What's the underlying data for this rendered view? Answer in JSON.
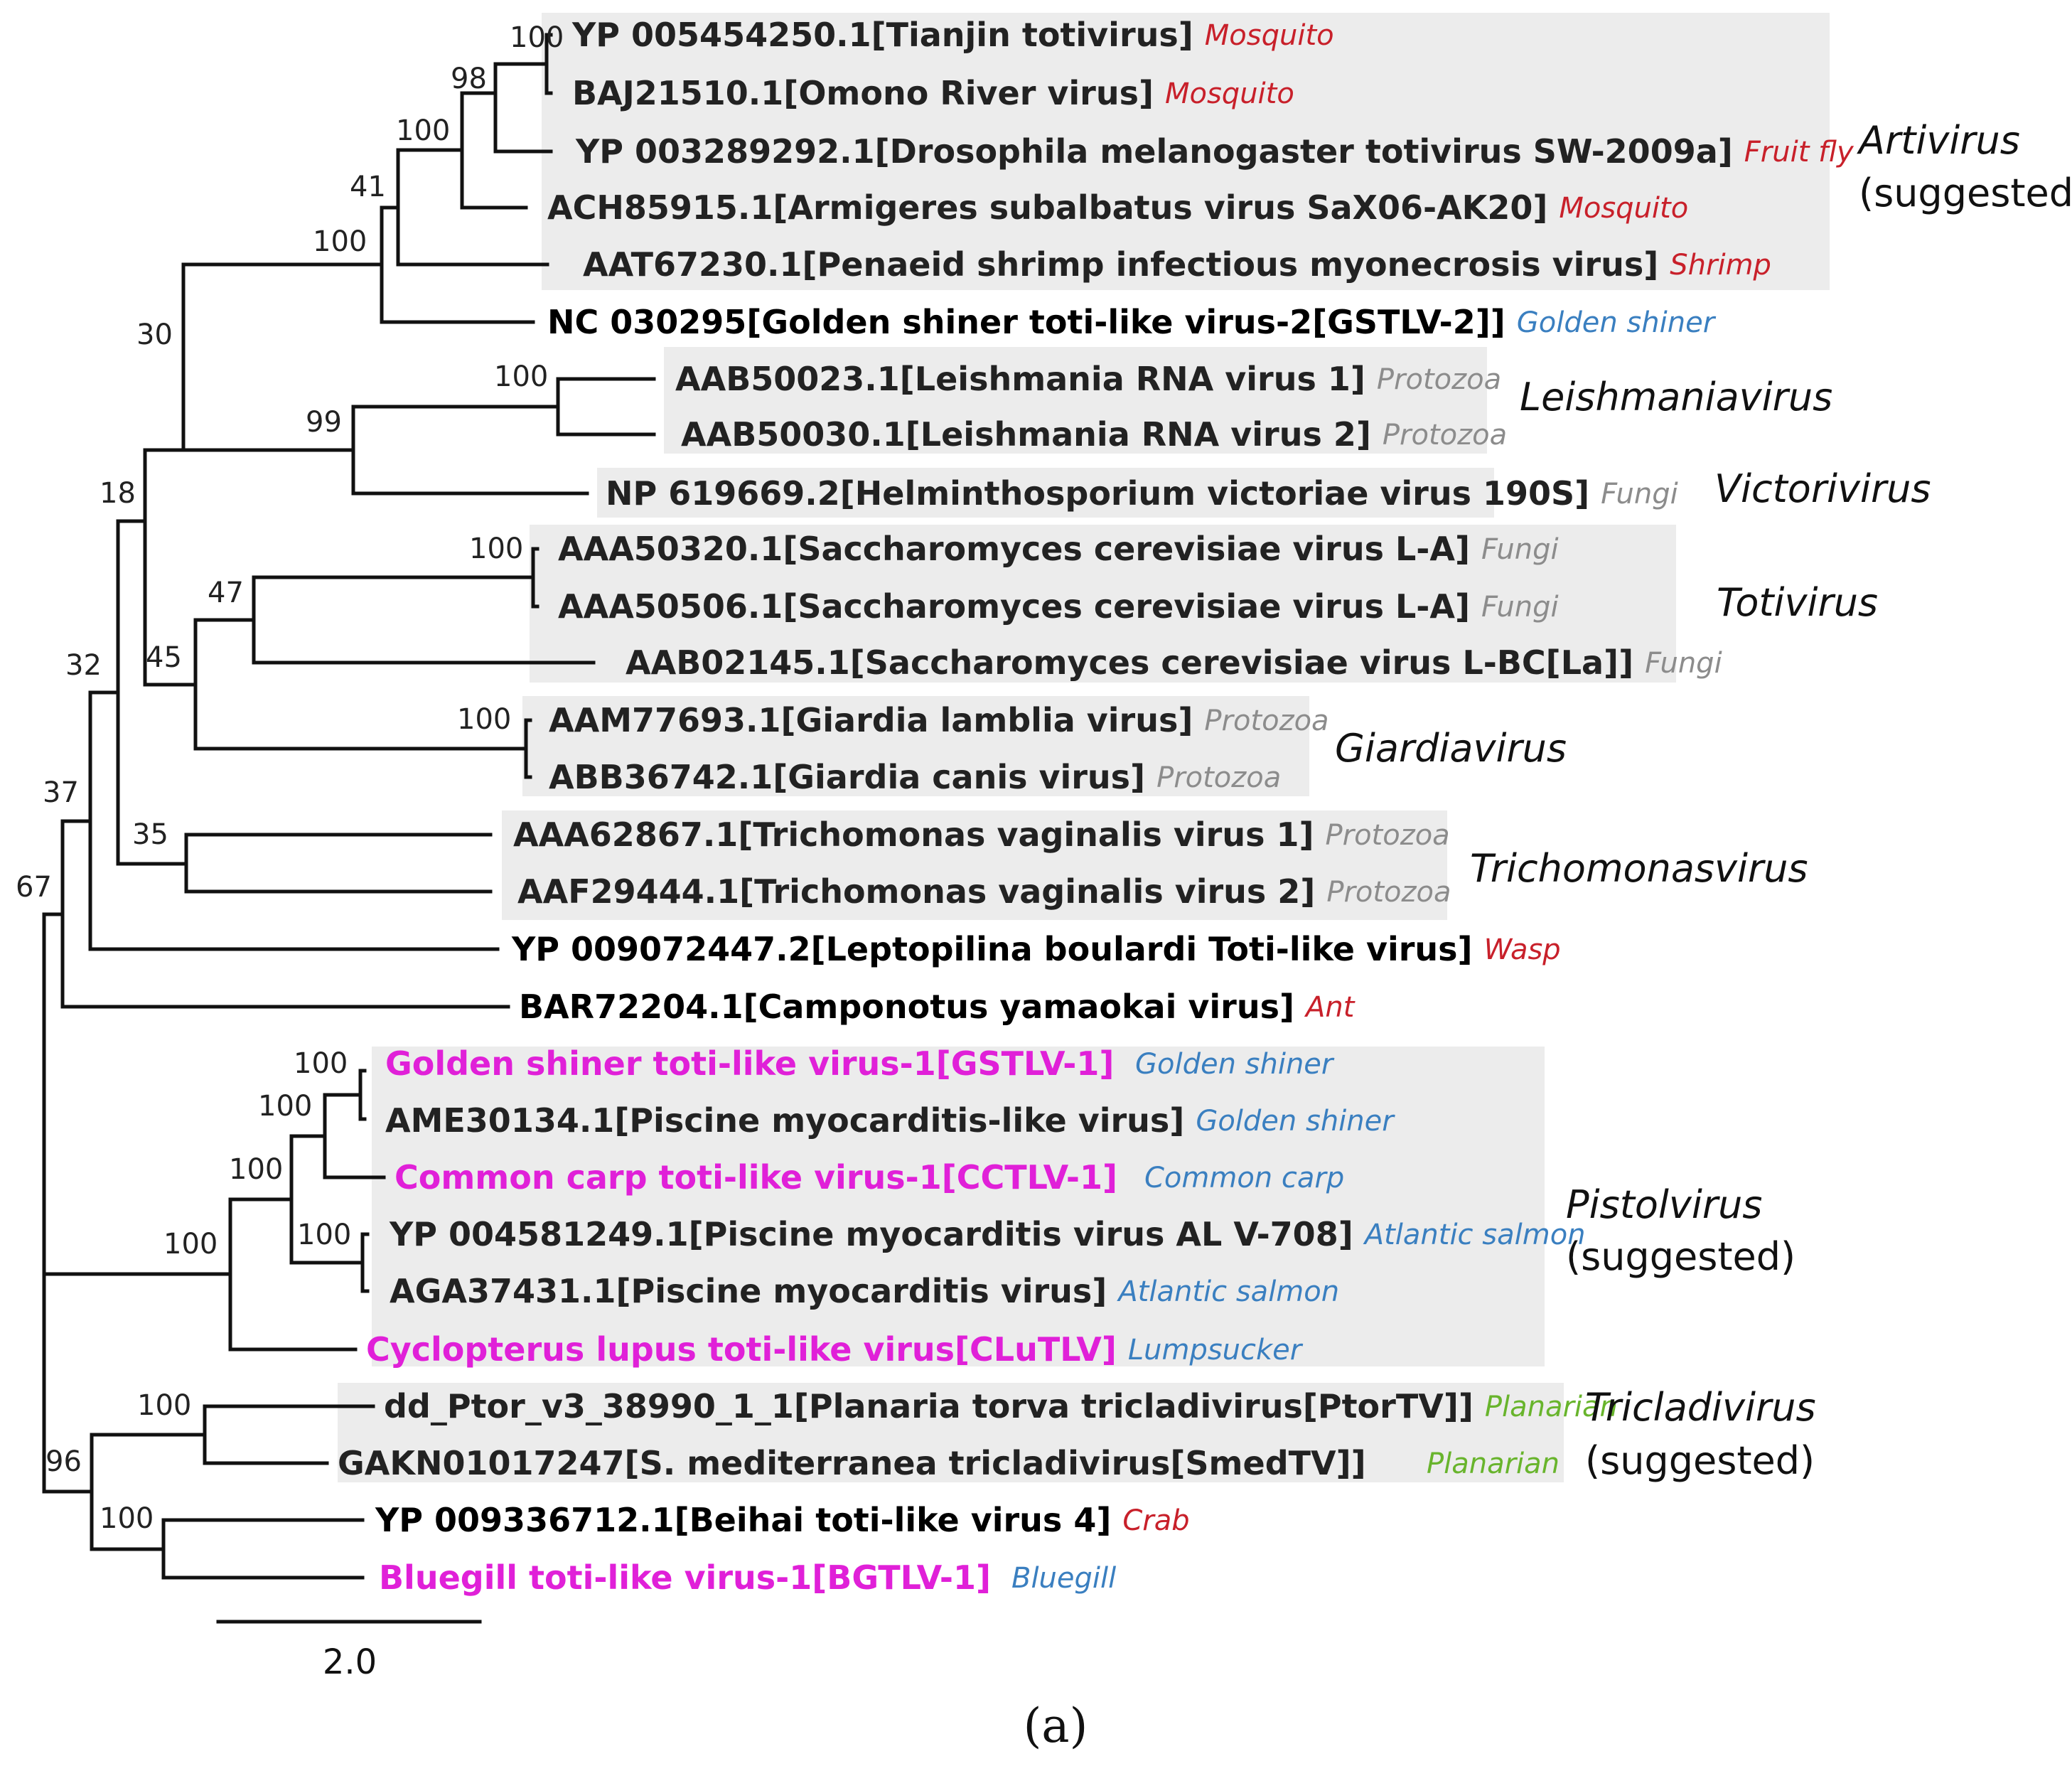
{
  "figure": {
    "panel_label": "(a)",
    "scale_bar": "2.0"
  },
  "colors": {
    "ingroup_text": "#222222",
    "new_virus": "#e020d8",
    "host_insect": "#c8202a",
    "host_fish": "#3a7fc0",
    "host_gray": "#8c8c8c",
    "host_planarian": "#68b42c",
    "box_fill": "#ececec"
  },
  "taxa": [
    {
      "label": "YP 005454250.1[Tianjin totivirus]",
      "host": "Mosquito",
      "kind": "boxed",
      "host_kind": "insect"
    },
    {
      "label": "BAJ21510.1[Omono River virus]",
      "host": "Mosquito",
      "kind": "boxed",
      "host_kind": "insect"
    },
    {
      "label": "YP 003289292.1[Drosophila melanogaster totivirus SW-2009a]",
      "host": "Fruit fly",
      "kind": "boxed",
      "host_kind": "insect"
    },
    {
      "label": "ACH85915.1[Armigeres subalbatus virus SaX06-AK20]",
      "host": "Mosquito",
      "kind": "boxed",
      "host_kind": "insect"
    },
    {
      "label": "AAT67230.1[Penaeid shrimp infectious myonecrosis virus]",
      "host": "Shrimp",
      "kind": "boxed",
      "host_kind": "insect"
    },
    {
      "label": "NC 030295[Golden shiner toti-like virus-2[GSTLV-2]]",
      "host": "Golden shiner",
      "kind": "outside",
      "host_kind": "fish"
    },
    {
      "label": "AAB50023.1[Leishmania RNA virus 1]",
      "host": "Protozoa",
      "kind": "boxed",
      "host_kind": "gray"
    },
    {
      "label": "AAB50030.1[Leishmania RNA virus 2]",
      "host": "Protozoa",
      "kind": "boxed",
      "host_kind": "gray"
    },
    {
      "label": "NP 619669.2[Helminthosporium victoriae virus 190S]",
      "host": "Fungi",
      "kind": "boxed",
      "host_kind": "gray"
    },
    {
      "label": "AAA50320.1[Saccharomyces cerevisiae virus L-A]",
      "host": "Fungi",
      "kind": "boxed",
      "host_kind": "gray"
    },
    {
      "label": "AAA50506.1[Saccharomyces cerevisiae virus L-A]",
      "host": "Fungi",
      "kind": "boxed",
      "host_kind": "gray"
    },
    {
      "label": "AAB02145.1[Saccharomyces cerevisiae virus L-BC[La]]",
      "host": "Fungi",
      "kind": "boxed",
      "host_kind": "gray"
    },
    {
      "label": "AAM77693.1[Giardia lamblia virus]",
      "host": "Protozoa",
      "kind": "boxed",
      "host_kind": "gray"
    },
    {
      "label": "ABB36742.1[Giardia canis virus]",
      "host": "Protozoa",
      "kind": "boxed",
      "host_kind": "gray"
    },
    {
      "label": "AAA62867.1[Trichomonas vaginalis virus 1]",
      "host": "Protozoa",
      "kind": "boxed",
      "host_kind": "gray"
    },
    {
      "label": "AAF29444.1[Trichomonas vaginalis virus 2]",
      "host": "Protozoa",
      "kind": "boxed",
      "host_kind": "gray"
    },
    {
      "label": "YP 009072447.2[Leptopilina boulardi Toti-like virus]",
      "host": "Wasp",
      "kind": "outside",
      "host_kind": "insect"
    },
    {
      "label": "BAR72204.1[Camponotus yamaokai virus]",
      "host": "Ant",
      "kind": "outside",
      "host_kind": "insect"
    },
    {
      "label": "Golden shiner toti-like virus-1[GSTLV-1]",
      "host": "Golden shiner",
      "kind": "new",
      "host_kind": "fish"
    },
    {
      "label": "AME30134.1[Piscine myocarditis-like virus]",
      "host": "Golden shiner",
      "kind": "boxed",
      "host_kind": "fish"
    },
    {
      "label": "Common carp toti-like virus-1[CCTLV-1]",
      "host": "Common carp",
      "kind": "new",
      "host_kind": "fish"
    },
    {
      "label": "YP 004581249.1[Piscine myocarditis virus AL V-708]",
      "host": "Atlantic salmon",
      "kind": "boxed",
      "host_kind": "fish"
    },
    {
      "label": "AGA37431.1[Piscine myocarditis virus]",
      "host": "Atlantic salmon",
      "kind": "boxed",
      "host_kind": "fish"
    },
    {
      "label": "Cyclopterus lupus toti-like virus[CLuTLV]",
      "host": "Lumpsucker",
      "kind": "new",
      "host_kind": "fish"
    },
    {
      "label": "dd_Ptor_v3_38990_1_1[Planaria torva tricladivirus[PtorTV]]",
      "host": "Planarian",
      "kind": "boxed",
      "host_kind": "planarian"
    },
    {
      "label": "GAKN01017247[S. mediterranea tricladivirus[SmedTV]]",
      "host": "Planarian",
      "kind": "boxed",
      "host_kind": "planarian"
    },
    {
      "label": "YP 009336712.1[Beihai toti-like virus 4]",
      "host": "Crab",
      "kind": "outside",
      "host_kind": "insect"
    },
    {
      "label": "Bluegill toti-like virus-1[BGTLV-1]",
      "host": "Bluegill",
      "kind": "new",
      "host_kind": "fish"
    }
  ],
  "bootstrap": [
    "100",
    "98",
    "100",
    "41",
    "100",
    "30",
    "100",
    "99",
    "18",
    "100",
    "47",
    "45",
    "32",
    "100",
    "35",
    "37",
    "67",
    "100",
    "100",
    "100",
    "100",
    "100",
    "100",
    "96",
    "100"
  ],
  "clades": [
    {
      "name": "Artivirus",
      "note": "(suggested)"
    },
    {
      "name": "Leishmaniavirus",
      "note": ""
    },
    {
      "name": "Victorivirus",
      "note": ""
    },
    {
      "name": "Totivirus",
      "note": ""
    },
    {
      "name": "Giardiavirus",
      "note": ""
    },
    {
      "name": "Trichomonasvirus",
      "note": ""
    },
    {
      "name": "Pistolvirus",
      "note": "(suggested)"
    },
    {
      "name": "Tricladivirus",
      "note": "(suggested)"
    }
  ]
}
